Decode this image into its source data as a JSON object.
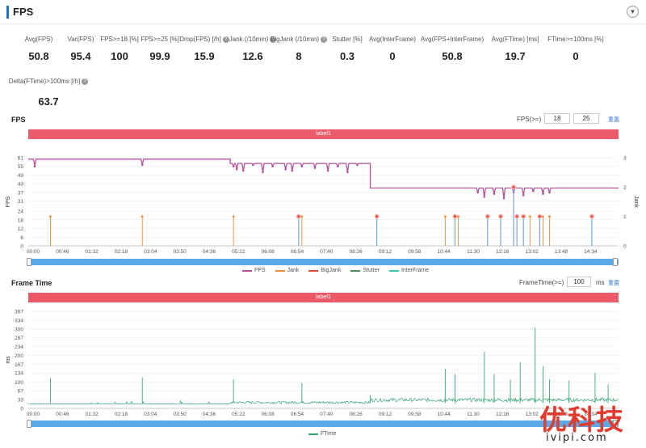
{
  "header": {
    "title": "FPS",
    "collapse_icon": "chevron-down-icon"
  },
  "metrics": [
    {
      "label": "Avg(FPS)",
      "value": "50.8",
      "help": false
    },
    {
      "label": "Var(FPS)",
      "value": "95.4",
      "help": false
    },
    {
      "label": "FPS>=18 [%]",
      "value": "100",
      "help": false
    },
    {
      "label": "FPS>=25 [%]",
      "value": "99.9",
      "help": false
    },
    {
      "label": "Drop(FPS) [/h]",
      "value": "15.9",
      "help": true
    },
    {
      "label": "Jank (/10min)",
      "value": "12.6",
      "help": true
    },
    {
      "label": "BigJank (/10min)",
      "value": "8",
      "help": true
    },
    {
      "label": "Stutter [%]",
      "value": "0.3",
      "help": false
    },
    {
      "label": "Avg(InterFrame)",
      "value": "0",
      "help": false
    },
    {
      "label": "Avg(FPS+InterFrame)",
      "value": "50.8",
      "help": false
    },
    {
      "label": "Avg(FTime) [ms]",
      "value": "19.7",
      "help": false
    },
    {
      "label": "FTime>=100ms [%]",
      "value": "0",
      "help": false
    },
    {
      "label": "Delta(FTime)>100ms [/h]",
      "value": "63.7",
      "help": true
    }
  ],
  "fps_section": {
    "title": "FPS",
    "threshold_label": "FPS(>=)",
    "threshold_1": "18",
    "threshold_2": "25",
    "reset_label": "重置",
    "band_label": "label1"
  },
  "frametime_section": {
    "title": "Frame Time",
    "threshold_label": "FrameTime(>=)",
    "threshold": "100",
    "unit": "ms",
    "reset_label": "重置",
    "band_label": "label1"
  },
  "chart_data": [
    {
      "type": "line",
      "x_ticks": [
        "00:00",
        "00:46",
        "01:32",
        "02:18",
        "03:04",
        "03:50",
        "04:36",
        "05:22",
        "06:08",
        "06:54",
        "07:40",
        "08:26",
        "09:12",
        "09:58",
        "10:44",
        "11:30",
        "12:16",
        "13:02",
        "13:48",
        "14:34"
      ],
      "xlim_seconds": [
        0,
        906
      ],
      "ylabel": "FPS",
      "ylim": [
        0,
        61
      ],
      "y_ticks": [
        0,
        6,
        12,
        18,
        24,
        31,
        37,
        43,
        49,
        55,
        61
      ],
      "y2label": "Jank",
      "y2lim": [
        0,
        3
      ],
      "y2_ticks": [
        0,
        1,
        2,
        3
      ],
      "legend_position": "bottom",
      "series": [
        {
          "name": "FPS",
          "color": "#b5519e",
          "segments": [
            {
              "x_start": 0,
              "x_end": 310,
              "value": 60
            },
            {
              "x_start": 310,
              "x_end": 525,
              "value": 57
            },
            {
              "x_start": 525,
              "x_end": 906,
              "value": 40
            }
          ],
          "dips": [
            {
              "x": 10,
              "value": 55
            },
            {
              "x": 175,
              "value": 56
            },
            {
              "x": 315,
              "value": 55
            },
            {
              "x": 320,
              "value": 53
            },
            {
              "x": 330,
              "value": 52
            },
            {
              "x": 345,
              "value": 56
            },
            {
              "x": 360,
              "value": 51
            },
            {
              "x": 375,
              "value": 55
            },
            {
              "x": 395,
              "value": 53
            },
            {
              "x": 405,
              "value": 52
            },
            {
              "x": 420,
              "value": 55
            },
            {
              "x": 440,
              "value": 54
            },
            {
              "x": 460,
              "value": 52
            },
            {
              "x": 475,
              "value": 55
            },
            {
              "x": 490,
              "value": 51
            },
            {
              "x": 505,
              "value": 56
            },
            {
              "x": 690,
              "value": 37
            },
            {
              "x": 700,
              "value": 34
            },
            {
              "x": 715,
              "value": 36
            },
            {
              "x": 730,
              "value": 33
            },
            {
              "x": 745,
              "value": 37
            },
            {
              "x": 760,
              "value": 35
            },
            {
              "x": 775,
              "value": 38
            },
            {
              "x": 790,
              "value": 36
            },
            {
              "x": 800,
              "value": 37
            }
          ]
        },
        {
          "name": "Jank",
          "color": "#ee8a3a",
          "events_x": [
            34,
            175,
            315,
            420,
            640,
            660,
            770,
            790,
            800
          ]
        },
        {
          "name": "BigJank",
          "color": "#e64a3c",
          "events_x": [
            415,
            535,
            655,
            705,
            725,
            750,
            760,
            785,
            865
          ]
        },
        {
          "name": "Stutter",
          "color": "#4a8a5a"
        },
        {
          "name": "InterFrame",
          "color": "#36c5b0"
        }
      ]
    },
    {
      "type": "line",
      "x_ticks": [
        "00:00",
        "00:46",
        "01:32",
        "02:18",
        "03:04",
        "03:50",
        "04:36",
        "05:22",
        "06:08",
        "06:54",
        "07:40",
        "08:26",
        "09:12",
        "09:58",
        "10:44",
        "11:30",
        "12:16",
        "13:02",
        "13:48",
        "14:34"
      ],
      "xlim_seconds": [
        0,
        906
      ],
      "ylabel": "ms",
      "ylim": [
        0,
        367
      ],
      "y_ticks": [
        0,
        33,
        67,
        100,
        134,
        167,
        200,
        234,
        267,
        300,
        334,
        367
      ],
      "legend_position": "bottom",
      "series": [
        {
          "name": "FTime",
          "color": "#3aa676",
          "baseline": [
            {
              "x_start": 0,
              "x_end": 310,
              "value": 16.7
            },
            {
              "x_start": 310,
              "x_end": 525,
              "value": 17.5
            },
            {
              "x_start": 525,
              "x_end": 906,
              "value": 25
            }
          ],
          "spikes": [
            {
              "x": 34,
              "value": 115
            },
            {
              "x": 175,
              "value": 118
            },
            {
              "x": 315,
              "value": 110
            },
            {
              "x": 420,
              "value": 95
            },
            {
              "x": 525,
              "value": 50
            },
            {
              "x": 640,
              "value": 150
            },
            {
              "x": 655,
              "value": 130
            },
            {
              "x": 700,
              "value": 215
            },
            {
              "x": 715,
              "value": 130
            },
            {
              "x": 740,
              "value": 110
            },
            {
              "x": 755,
              "value": 175
            },
            {
              "x": 778,
              "value": 305
            },
            {
              "x": 790,
              "value": 160
            },
            {
              "x": 800,
              "value": 110
            },
            {
              "x": 830,
              "value": 105
            },
            {
              "x": 870,
              "value": 135
            },
            {
              "x": 890,
              "value": 90
            }
          ]
        }
      ]
    }
  ]
}
